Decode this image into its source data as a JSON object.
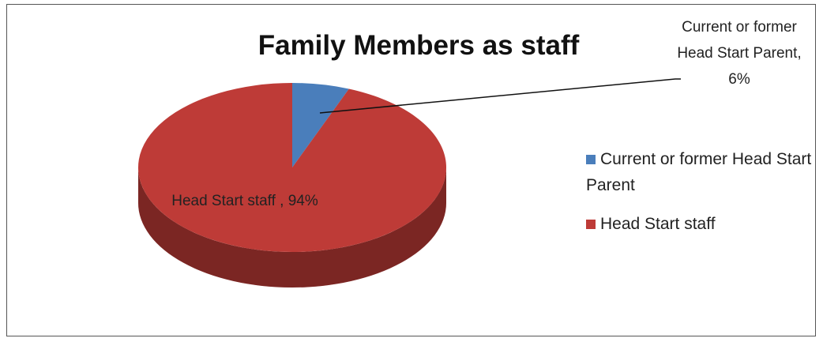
{
  "chart_data": {
    "type": "pie",
    "title": "Family Members as staff",
    "categories": [
      "Current or former Head Start Parent",
      "Head Start staff"
    ],
    "values": [
      6,
      94
    ],
    "value_labels": [
      "Current or former Head Start Parent, 6%",
      "Head Start staff , 94%"
    ],
    "colors": [
      "#4a7ebb",
      "#be3b37"
    ],
    "legend": "right"
  }
}
